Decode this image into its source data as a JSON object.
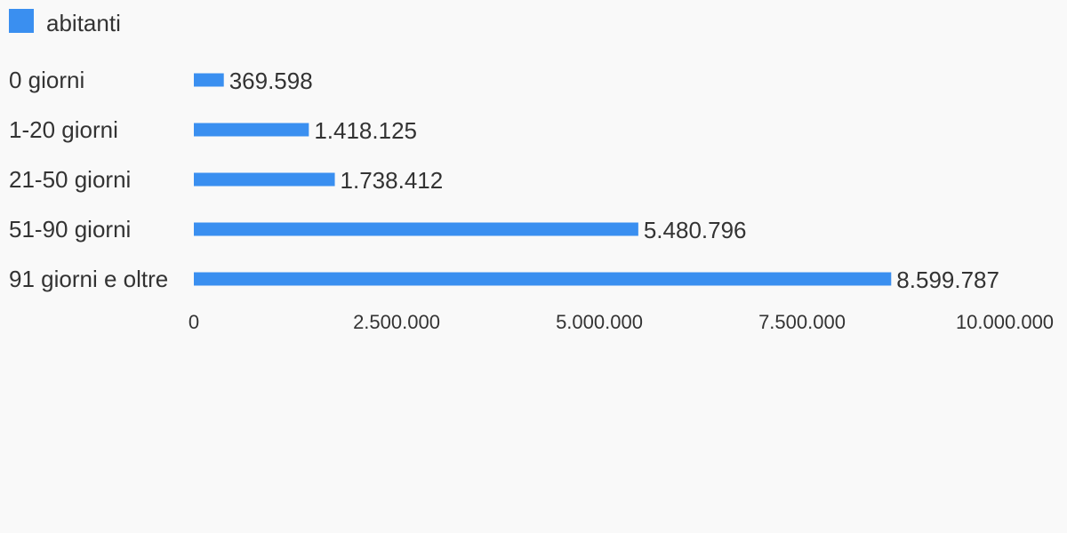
{
  "chart_data": {
    "type": "bar",
    "orientation": "horizontal",
    "categories": [
      "0 giorni",
      "1-20 giorni",
      "21-50 giorni",
      "51-90 giorni",
      "91 giorni e oltre"
    ],
    "series": [
      {
        "name": "abitanti",
        "color": "#3a8ff0",
        "values": [
          369598,
          1418125,
          1738412,
          5480796,
          8599787
        ],
        "value_labels": [
          "369.598",
          "1.418.125",
          "1.738.412",
          "5.480.796",
          "8.599.787"
        ]
      }
    ],
    "xlim": [
      0,
      10000000
    ],
    "x_ticks": [
      {
        "value": 0,
        "label": "0"
      },
      {
        "value": 2500000,
        "label": "2.500.000"
      },
      {
        "value": 5000000,
        "label": "5.000.000"
      },
      {
        "value": 7500000,
        "label": "7.500.000"
      },
      {
        "value": 10000000,
        "label": "10.000.000"
      }
    ],
    "legend_position": "top-left",
    "grid": false
  }
}
